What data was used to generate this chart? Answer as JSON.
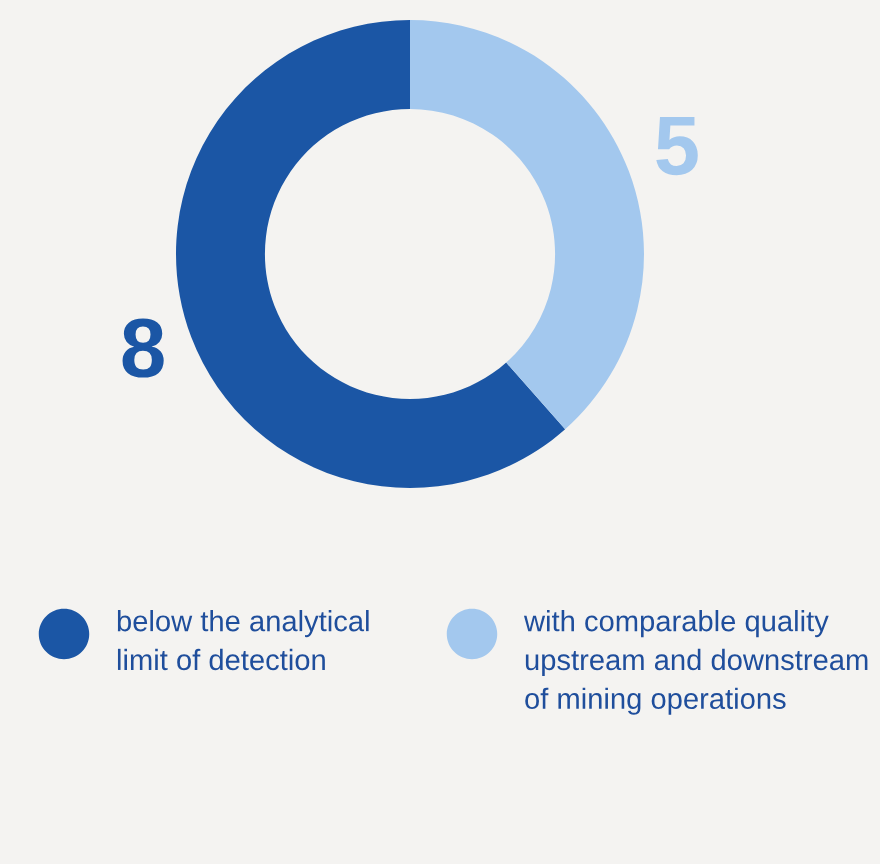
{
  "chart_data": {
    "type": "donut",
    "categories": [
      "below the analytical limit of detection",
      "with comparable quality upstream and downstream of mining operations"
    ],
    "values": [
      8,
      5
    ],
    "colors": [
      "#1b56a5",
      "#a3c8ee"
    ],
    "data_labels": true,
    "legend": "bottom"
  }
}
